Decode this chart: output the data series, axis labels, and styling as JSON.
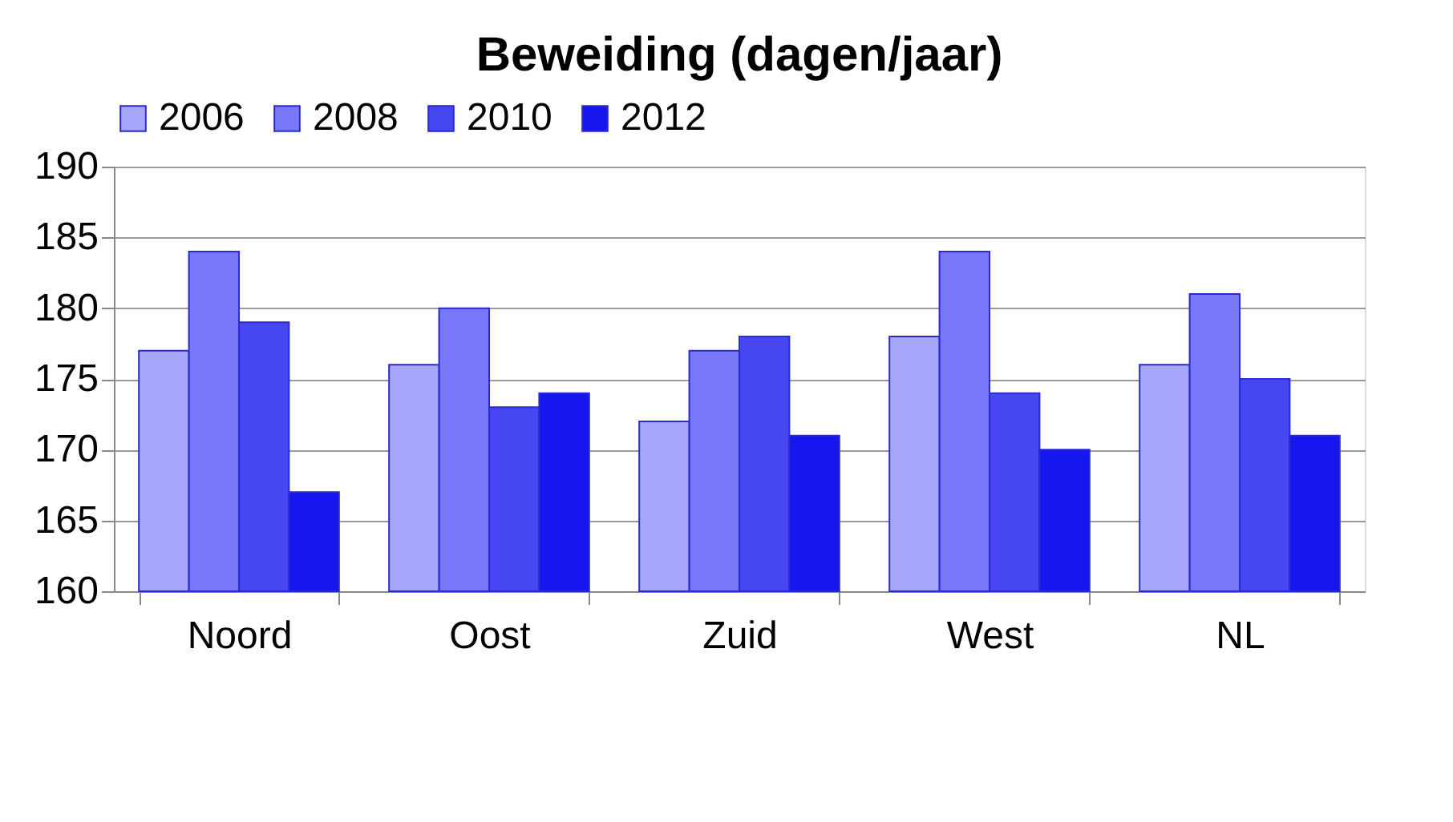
{
  "chart_data": {
    "type": "bar",
    "title": "Beweiding (dagen/jaar)",
    "categories": [
      "Noord",
      "Oost",
      "Zuid",
      "West",
      "NL"
    ],
    "series": [
      {
        "name": "2006",
        "color": "#a6a6fa",
        "values": [
          177,
          176,
          172,
          178,
          176
        ]
      },
      {
        "name": "2008",
        "color": "#7878f8",
        "values": [
          184,
          180,
          177,
          184,
          181
        ]
      },
      {
        "name": "2010",
        "color": "#4646f2",
        "values": [
          179,
          173,
          178,
          174,
          175
        ]
      },
      {
        "name": "2012",
        "color": "#1616ee",
        "values": [
          167,
          174,
          171,
          170,
          171
        ]
      }
    ],
    "ylim": [
      160,
      190
    ],
    "yticks": [
      160,
      165,
      170,
      175,
      180,
      185,
      190
    ],
    "grid": "y",
    "legend": "top"
  }
}
